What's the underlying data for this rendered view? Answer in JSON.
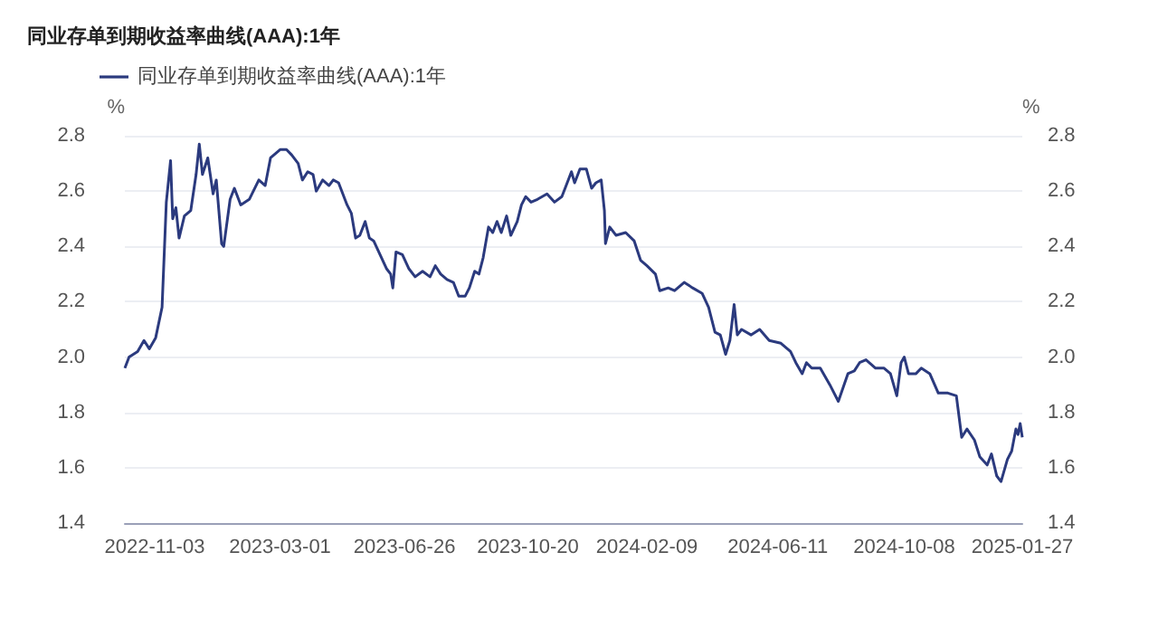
{
  "chart_data": {
    "type": "line",
    "title": "同业存单到期收益率曲线(AAA):1年",
    "ylabel": "%",
    "y2label": "%",
    "x": [
      "2022-10-06",
      "2022-10-10",
      "2022-10-18",
      "2022-10-24",
      "2022-10-29",
      "2022-11-04",
      "2022-11-10",
      "2022-11-14",
      "2022-11-18",
      "2022-11-20",
      "2022-11-23",
      "2022-11-26",
      "2022-12-01",
      "2022-12-07",
      "2022-12-12",
      "2022-12-15",
      "2022-12-18",
      "2022-12-23",
      "2022-12-28",
      "2022-12-31",
      "2023-01-05",
      "2023-01-07",
      "2023-01-13",
      "2023-01-17",
      "2023-01-23",
      "2023-01-31",
      "2023-02-09",
      "2023-02-15",
      "2023-02-20",
      "2023-03-01",
      "2023-03-07",
      "2023-03-12",
      "2023-03-18",
      "2023-03-22",
      "2023-03-27",
      "2023-04-01",
      "2023-04-04",
      "2023-04-10",
      "2023-04-16",
      "2023-04-20",
      "2023-04-25",
      "2023-05-03",
      "2023-05-07",
      "2023-05-11",
      "2023-05-15",
      "2023-05-20",
      "2023-05-24",
      "2023-05-28",
      "2023-06-03",
      "2023-06-09",
      "2023-06-13",
      "2023-06-15",
      "2023-06-18",
      "2023-06-24",
      "2023-06-30",
      "2023-07-06",
      "2023-07-13",
      "2023-07-20",
      "2023-07-25",
      "2023-07-30",
      "2023-08-05",
      "2023-08-11",
      "2023-08-16",
      "2023-08-22",
      "2023-08-26",
      "2023-08-31",
      "2023-09-04",
      "2023-09-08",
      "2023-09-13",
      "2023-09-17",
      "2023-09-21",
      "2023-09-25",
      "2023-09-30",
      "2023-10-04",
      "2023-10-10",
      "2023-10-14",
      "2023-10-18",
      "2023-10-23",
      "2023-10-29",
      "2023-11-07",
      "2023-11-14",
      "2023-11-21",
      "2023-11-27",
      "2023-11-30",
      "2023-12-03",
      "2023-12-08",
      "2023-12-14",
      "2023-12-19",
      "2023-12-23",
      "2023-12-28",
      "2023-12-31",
      "2024-01-01",
      "2024-01-05",
      "2024-01-11",
      "2024-01-20",
      "2024-01-28",
      "2024-02-03",
      "2024-02-09",
      "2024-02-17",
      "2024-02-21",
      "2024-02-29",
      "2024-03-06",
      "2024-03-15",
      "2024-03-23",
      "2024-04-01",
      "2024-04-07",
      "2024-04-13",
      "2024-04-18",
      "2024-04-23",
      "2024-04-27",
      "2024-05-01",
      "2024-05-04",
      "2024-05-08",
      "2024-05-17",
      "2024-05-25",
      "2024-06-03",
      "2024-06-14",
      "2024-06-23",
      "2024-06-28",
      "2024-07-04",
      "2024-07-08",
      "2024-07-13",
      "2024-07-21",
      "2024-07-30",
      "2024-08-07",
      "2024-08-16",
      "2024-08-22",
      "2024-08-27",
      "2024-09-02",
      "2024-09-11",
      "2024-09-19",
      "2024-09-25",
      "2024-10-01",
      "2024-10-05",
      "2024-10-08",
      "2024-10-12",
      "2024-10-19",
      "2024-10-24",
      "2024-11-01",
      "2024-11-09",
      "2024-11-18",
      "2024-11-26",
      "2024-12-01",
      "2024-12-06",
      "2024-12-13",
      "2024-12-18",
      "2024-12-25",
      "2024-12-29",
      "2025-01-03",
      "2025-01-07",
      "2025-01-13",
      "2025-01-17",
      "2025-01-21",
      "2025-01-23",
      "2025-01-25",
      "2025-01-27"
    ],
    "series": [
      {
        "name": "同业存单到期收益率曲线(AAA):1年",
        "color": "#2b3a7e",
        "values": [
          1.96,
          2.0,
          2.02,
          2.06,
          2.03,
          2.07,
          2.18,
          2.56,
          2.71,
          2.5,
          2.54,
          2.43,
          2.51,
          2.53,
          2.66,
          2.77,
          2.66,
          2.72,
          2.59,
          2.64,
          2.41,
          2.4,
          2.57,
          2.61,
          2.55,
          2.57,
          2.64,
          2.62,
          2.72,
          2.75,
          2.75,
          2.73,
          2.7,
          2.64,
          2.67,
          2.66,
          2.6,
          2.64,
          2.62,
          2.64,
          2.63,
          2.55,
          2.52,
          2.43,
          2.44,
          2.49,
          2.43,
          2.42,
          2.37,
          2.32,
          2.3,
          2.25,
          2.38,
          2.37,
          2.32,
          2.29,
          2.31,
          2.29,
          2.33,
          2.3,
          2.28,
          2.27,
          2.22,
          2.22,
          2.25,
          2.31,
          2.3,
          2.36,
          2.47,
          2.45,
          2.49,
          2.45,
          2.51,
          2.44,
          2.49,
          2.55,
          2.58,
          2.56,
          2.57,
          2.59,
          2.56,
          2.58,
          2.64,
          2.67,
          2.63,
          2.68,
          2.68,
          2.61,
          2.63,
          2.64,
          2.53,
          2.41,
          2.47,
          2.44,
          2.45,
          2.42,
          2.35,
          2.33,
          2.3,
          2.24,
          2.25,
          2.24,
          2.27,
          2.25,
          2.23,
          2.18,
          2.09,
          2.08,
          2.01,
          2.06,
          2.19,
          2.08,
          2.1,
          2.08,
          2.1,
          2.06,
          2.05,
          2.02,
          1.98,
          1.94,
          1.98,
          1.96,
          1.96,
          1.9,
          1.84,
          1.94,
          1.95,
          1.98,
          1.99,
          1.96,
          1.96,
          1.94,
          1.86,
          1.98,
          2.0,
          1.94,
          1.94,
          1.96,
          1.94,
          1.87,
          1.87,
          1.86,
          1.71,
          1.74,
          1.7,
          1.64,
          1.61,
          1.65,
          1.57,
          1.55,
          1.63,
          1.66,
          1.74,
          1.72,
          1.76,
          1.71
        ]
      }
    ],
    "xlim": [
      "2022-10-06",
      "2025-01-27"
    ],
    "xticks": [
      "2022-11-03",
      "2023-03-01",
      "2023-06-26",
      "2023-10-20",
      "2024-02-09",
      "2024-06-11",
      "2024-10-08",
      "2025-01-27"
    ],
    "ylim": [
      1.4,
      2.8
    ],
    "yticks": [
      1.4,
      1.6,
      1.8,
      {
        "value": 2,
        "label": "2.0"
      },
      2.2,
      2.4,
      2.6,
      2.8
    ],
    "y2lim": [
      1.4,
      2.8
    ],
    "y2ticks": [
      1.4,
      1.6,
      1.8,
      {
        "value": 2,
        "label": "2.0"
      },
      2.2,
      2.4,
      2.6,
      2.8
    ],
    "grid": "y",
    "legend": "top left",
    "marker": "none",
    "line_style": "solid"
  }
}
